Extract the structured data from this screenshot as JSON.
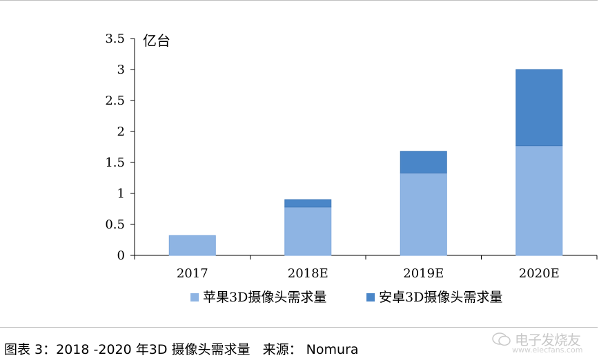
{
  "chart_data": {
    "type": "bar",
    "stacked": true,
    "categories": [
      "2017",
      "2018E",
      "2019E",
      "2020E"
    ],
    "series": [
      {
        "name": "苹果3D摄像头需求量",
        "values": [
          0.32,
          0.78,
          1.33,
          1.77
        ],
        "color": "#8eb4e3"
      },
      {
        "name": "安卓3D摄像头需求量",
        "values": [
          0.0,
          0.12,
          0.35,
          1.23
        ],
        "color": "#4a86c8"
      }
    ],
    "ylabel": "亿台",
    "ylim": [
      0,
      3.5
    ],
    "yticks": [
      "0",
      "0.5",
      "1",
      "1.5",
      "2",
      "2.5",
      "3",
      "3.5"
    ],
    "grid": false,
    "legend_position": "bottom"
  },
  "caption": "图表 3：2018 -2020 年3D 摄像头需求量   来源： Nomura",
  "watermark": {
    "text": "电子发烧友",
    "site": "www.elecfans.com",
    "icon": "chat-bubble-icon"
  }
}
